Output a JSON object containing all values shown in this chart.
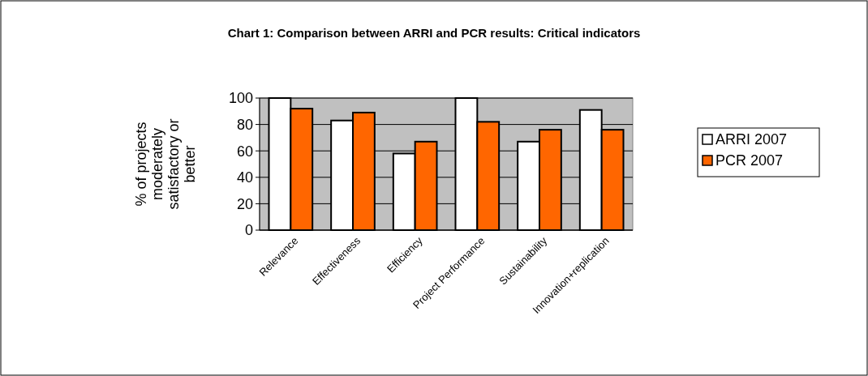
{
  "chart_data": {
    "type": "bar",
    "title": "Chart 1: Comparison between ARRI and PCR results: Critical indicators",
    "ylabel": "% of projects moderately satisfactory or better",
    "categories": [
      "Relevance",
      "Effectiveness",
      "Efficiency",
      "Project Performance",
      "Sustainability",
      "Innovation+replication"
    ],
    "series": [
      {
        "name": "ARRI 2007",
        "color": "#ffffff",
        "values": [
          100,
          83,
          58,
          100,
          67,
          91
        ]
      },
      {
        "name": "PCR 2007",
        "color": "#ff6600",
        "values": [
          92,
          89,
          67,
          82,
          76,
          76
        ]
      }
    ],
    "ylim": [
      0,
      100
    ],
    "yticks": [
      0,
      20,
      40,
      60,
      80,
      100
    ],
    "grid": "y",
    "legend": "right"
  }
}
